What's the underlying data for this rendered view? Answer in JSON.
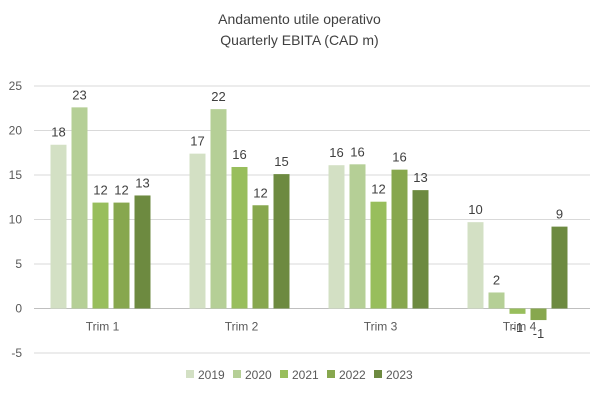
{
  "chart_data": {
    "type": "bar",
    "title": "Andamento utile operativo",
    "subtitle": "Quarterly EBITA (CAD m)",
    "xlabel": "",
    "ylabel": "",
    "categories": [
      "Trim 1",
      "Trim 2",
      "Trim 3",
      "Trim 4"
    ],
    "ylim": [
      -5,
      25
    ],
    "yticks": [
      -5,
      0,
      5,
      10,
      15,
      20,
      25
    ],
    "grid": true,
    "legend_position": "bottom",
    "series": [
      {
        "name": "2019",
        "color": "#d3e0c4",
        "values": [
          18.4,
          17.4,
          16.1,
          9.7
        ],
        "labels": [
          "18",
          "17",
          "16",
          "10"
        ]
      },
      {
        "name": "2020",
        "color": "#b5cf96",
        "values": [
          22.6,
          22.4,
          16.2,
          1.8
        ],
        "labels": [
          "23",
          "22",
          "16",
          "2"
        ]
      },
      {
        "name": "2021",
        "color": "#98be5c",
        "values": [
          11.9,
          15.9,
          12.0,
          -0.6
        ],
        "labels": [
          "12",
          "16",
          "12",
          "-1"
        ]
      },
      {
        "name": "2022",
        "color": "#87a74e",
        "values": [
          11.9,
          11.6,
          15.6,
          -1.3
        ],
        "labels": [
          "12",
          "12",
          "16",
          "-1"
        ]
      },
      {
        "name": "2023",
        "color": "#6d8a40",
        "values": [
          12.7,
          15.1,
          13.3,
          9.2
        ],
        "labels": [
          "13",
          "15",
          "13",
          "9"
        ]
      }
    ]
  }
}
